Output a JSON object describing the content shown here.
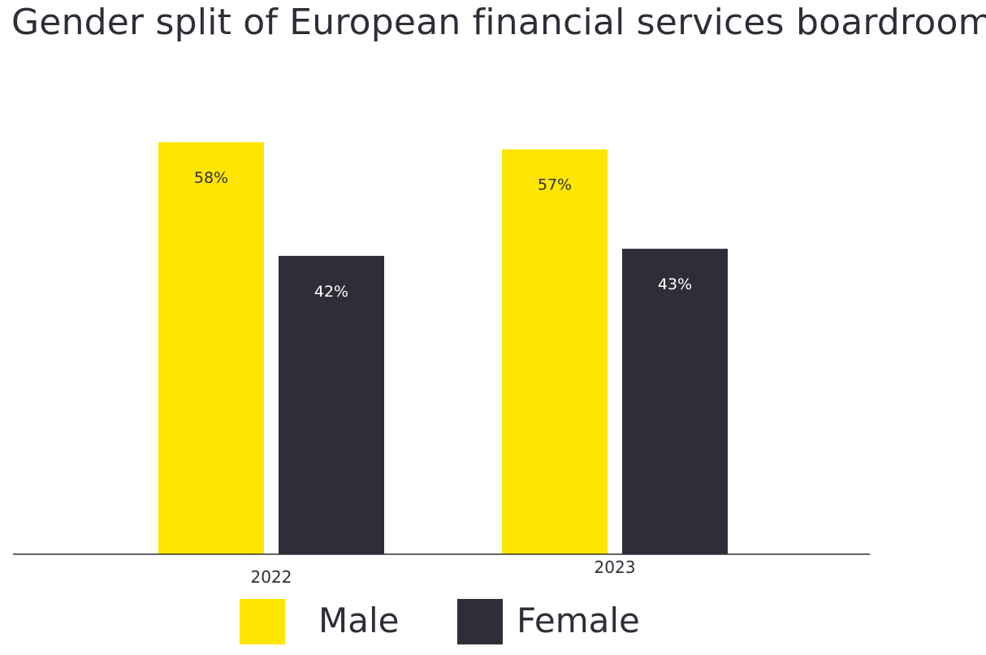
{
  "chart_data": {
    "type": "bar",
    "title": "Gender split of European financial services boardrooms",
    "xlabel": "",
    "ylabel": "",
    "categories": [
      "2022",
      "2023"
    ],
    "series": [
      {
        "name": "Male",
        "values": [
          58,
          57
        ],
        "labels": [
          "58%",
          "57%"
        ],
        "color": "#ffe600",
        "label_color": "#2e2e38"
      },
      {
        "name": "Female",
        "values": [
          42,
          43
        ],
        "labels": [
          "42%",
          "43%"
        ],
        "color": "#2e2e38",
        "label_color": "#ffffff"
      }
    ],
    "ylim": [
      0,
      58
    ],
    "grid": false,
    "legend_position": "bottom",
    "axis_color": "#2e2e38"
  }
}
